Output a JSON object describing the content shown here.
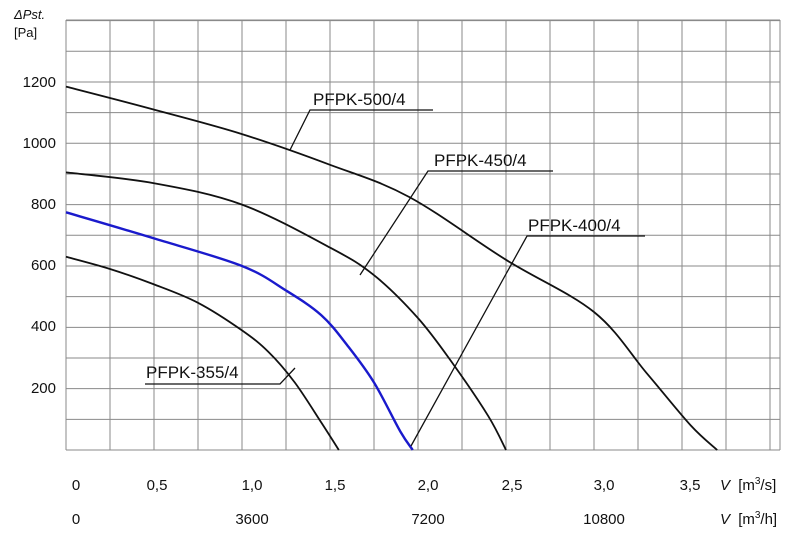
{
  "chart_data": {
    "type": "line",
    "y_axis": {
      "symbol": "ΔPst.",
      "unit": "[Pa]",
      "ticks": [
        "1200",
        "1000",
        "800",
        "600",
        "400",
        "200"
      ],
      "ylim": [
        0,
        1300
      ]
    },
    "x_axis_primary": {
      "symbol": "V",
      "unit": "[m",
      "unit_exp": "3",
      "unit_tail": "/s]",
      "ticks": [
        "0",
        "0,5",
        "1,0",
        "1,5",
        "2,0",
        "2,5",
        "3,0",
        "3,5"
      ],
      "xlim": [
        0,
        3.9
      ]
    },
    "x_axis_secondary": {
      "symbol": "V",
      "unit": "[m",
      "unit_exp": "3",
      "unit_tail": "/h]",
      "ticks": [
        "0",
        "3600",
        "7200",
        "10800"
      ]
    },
    "grid": true,
    "series": [
      {
        "name": "PFPK-500/4",
        "color": "#111111",
        "points": [
          [
            0,
            1185
          ],
          [
            0.5,
            1110
          ],
          [
            1.0,
            1030
          ],
          [
            1.5,
            930
          ],
          [
            1.95,
            825
          ],
          [
            2.5,
            620
          ],
          [
            3.0,
            450
          ],
          [
            3.3,
            250
          ],
          [
            3.55,
            80
          ],
          [
            3.7,
            0
          ]
        ]
      },
      {
        "name": "PFPK-450/4",
        "color": "#111111",
        "points": [
          [
            0,
            905
          ],
          [
            0.5,
            870
          ],
          [
            1.0,
            800
          ],
          [
            1.5,
            660
          ],
          [
            1.75,
            570
          ],
          [
            2.0,
            430
          ],
          [
            2.2,
            280
          ],
          [
            2.4,
            110
          ],
          [
            2.5,
            0
          ]
        ]
      },
      {
        "name": "PFPK-400/4",
        "color": "#1a1acc",
        "points": [
          [
            0,
            775
          ],
          [
            0.5,
            690
          ],
          [
            1.0,
            600
          ],
          [
            1.25,
            520
          ],
          [
            1.45,
            440
          ],
          [
            1.6,
            340
          ],
          [
            1.75,
            220
          ],
          [
            1.9,
            60
          ],
          [
            1.97,
            0
          ]
        ]
      },
      {
        "name": "PFPK-355/4",
        "color": "#111111",
        "points": [
          [
            0,
            630
          ],
          [
            0.25,
            590
          ],
          [
            0.5,
            540
          ],
          [
            0.75,
            480
          ],
          [
            1.0,
            390
          ],
          [
            1.15,
            320
          ],
          [
            1.3,
            220
          ],
          [
            1.45,
            90
          ],
          [
            1.55,
            0
          ]
        ]
      }
    ],
    "annotations": [
      {
        "series": "PFPK-500/4",
        "text": "PFPK-500/4"
      },
      {
        "series": "PFPK-450/4",
        "text": "PFPK-450/4"
      },
      {
        "series": "PFPK-400/4",
        "text": "PFPK-400/4"
      },
      {
        "series": "PFPK-355/4",
        "text": "PFPK-355/4"
      }
    ]
  }
}
